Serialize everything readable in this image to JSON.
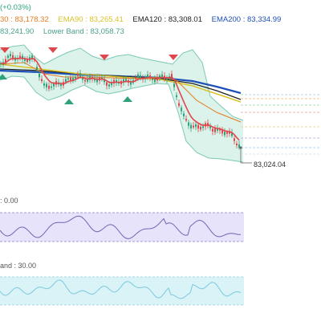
{
  "legend": {
    "line1": {
      "change": "(+0.03%)"
    },
    "line2": [
      {
        "text": "30 : 83,178.32",
        "color": "#e67a1f"
      },
      {
        "text": "EMA90 : 83,265.41",
        "color": "#d9c22b"
      },
      {
        "text": "EMA120 : 83,308.01",
        "color": "#222222"
      },
      {
        "text": "EMA200 : 83,334.99",
        "color": "#1f4fb8"
      }
    ],
    "line3": [
      {
        "text": "83,241.90",
        "color": "#4aa08c"
      },
      {
        "text": "Lower Band : 83,058.73",
        "color": "#4aa08c"
      }
    ]
  },
  "last_price_tag": "83,024.04",
  "panels": {
    "rsi": {
      "label": ": 0.00"
    },
    "band": {
      "label": "and : 30.00"
    }
  },
  "colors": {
    "candle_up": "#2ea37a",
    "candle_down": "#e0474c",
    "ema_short": "#e0474c",
    "ema_mid": "#e67a1f",
    "ema90": "#d9c22b",
    "ema120": "#222222",
    "ema200": "#1f4fb8",
    "band_fill": "#c7ece0",
    "band_line": "#7cc9b3",
    "rsi_fill": "#e7e3fa",
    "rsi_line": "#6e67b4",
    "cyan_fill": "#d9f3f7",
    "cyan_line": "#7cc9df",
    "signal_up": "#2ea37a",
    "signal_down": "#e0474c"
  }
}
